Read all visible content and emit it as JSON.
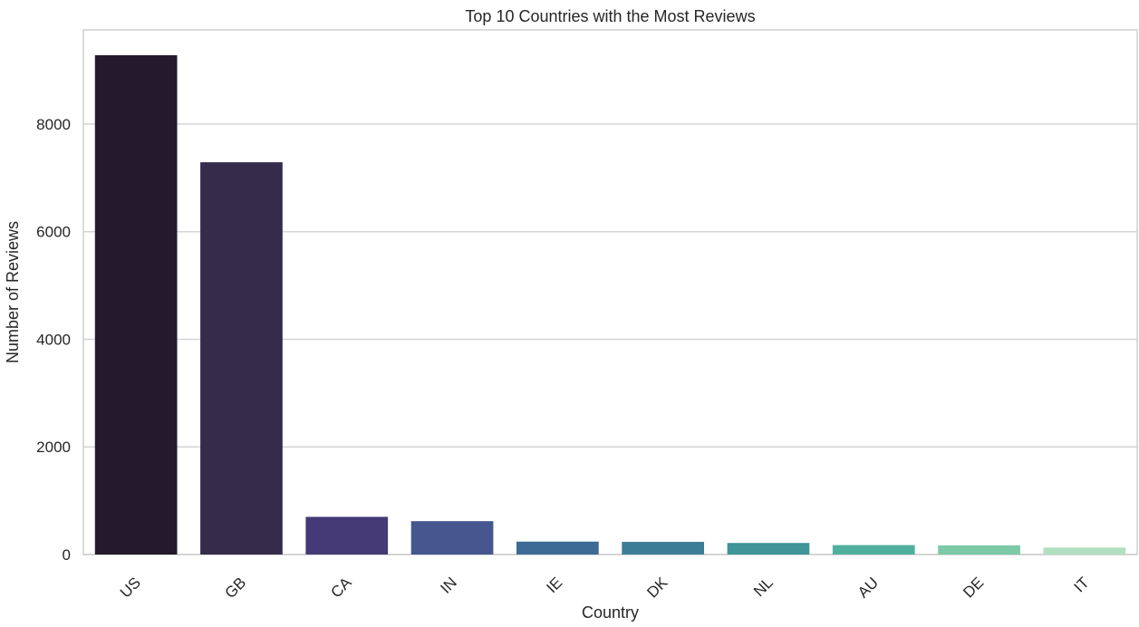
{
  "chart_data": {
    "type": "bar",
    "title": "Top 10 Countries with the Most Reviews",
    "xlabel": "Country",
    "ylabel": "Number of Reviews",
    "categories": [
      "US",
      "GB",
      "CA",
      "IN",
      "IE",
      "DK",
      "NL",
      "AU",
      "DE",
      "IT"
    ],
    "values": [
      9280,
      7290,
      700,
      620,
      240,
      235,
      215,
      175,
      170,
      130
    ],
    "ylim": [
      0,
      9750
    ],
    "yticks": [
      0,
      2000,
      4000,
      6000,
      8000
    ],
    "grid": "horizontal",
    "x_tick_rotation": 45,
    "colors": [
      "#251a2b",
      "#352b4b",
      "#453a75",
      "#45578e",
      "#3e6b95",
      "#3d7d96",
      "#3f9597",
      "#4fb09d",
      "#7cc9a8",
      "#b2dfc2"
    ]
  }
}
